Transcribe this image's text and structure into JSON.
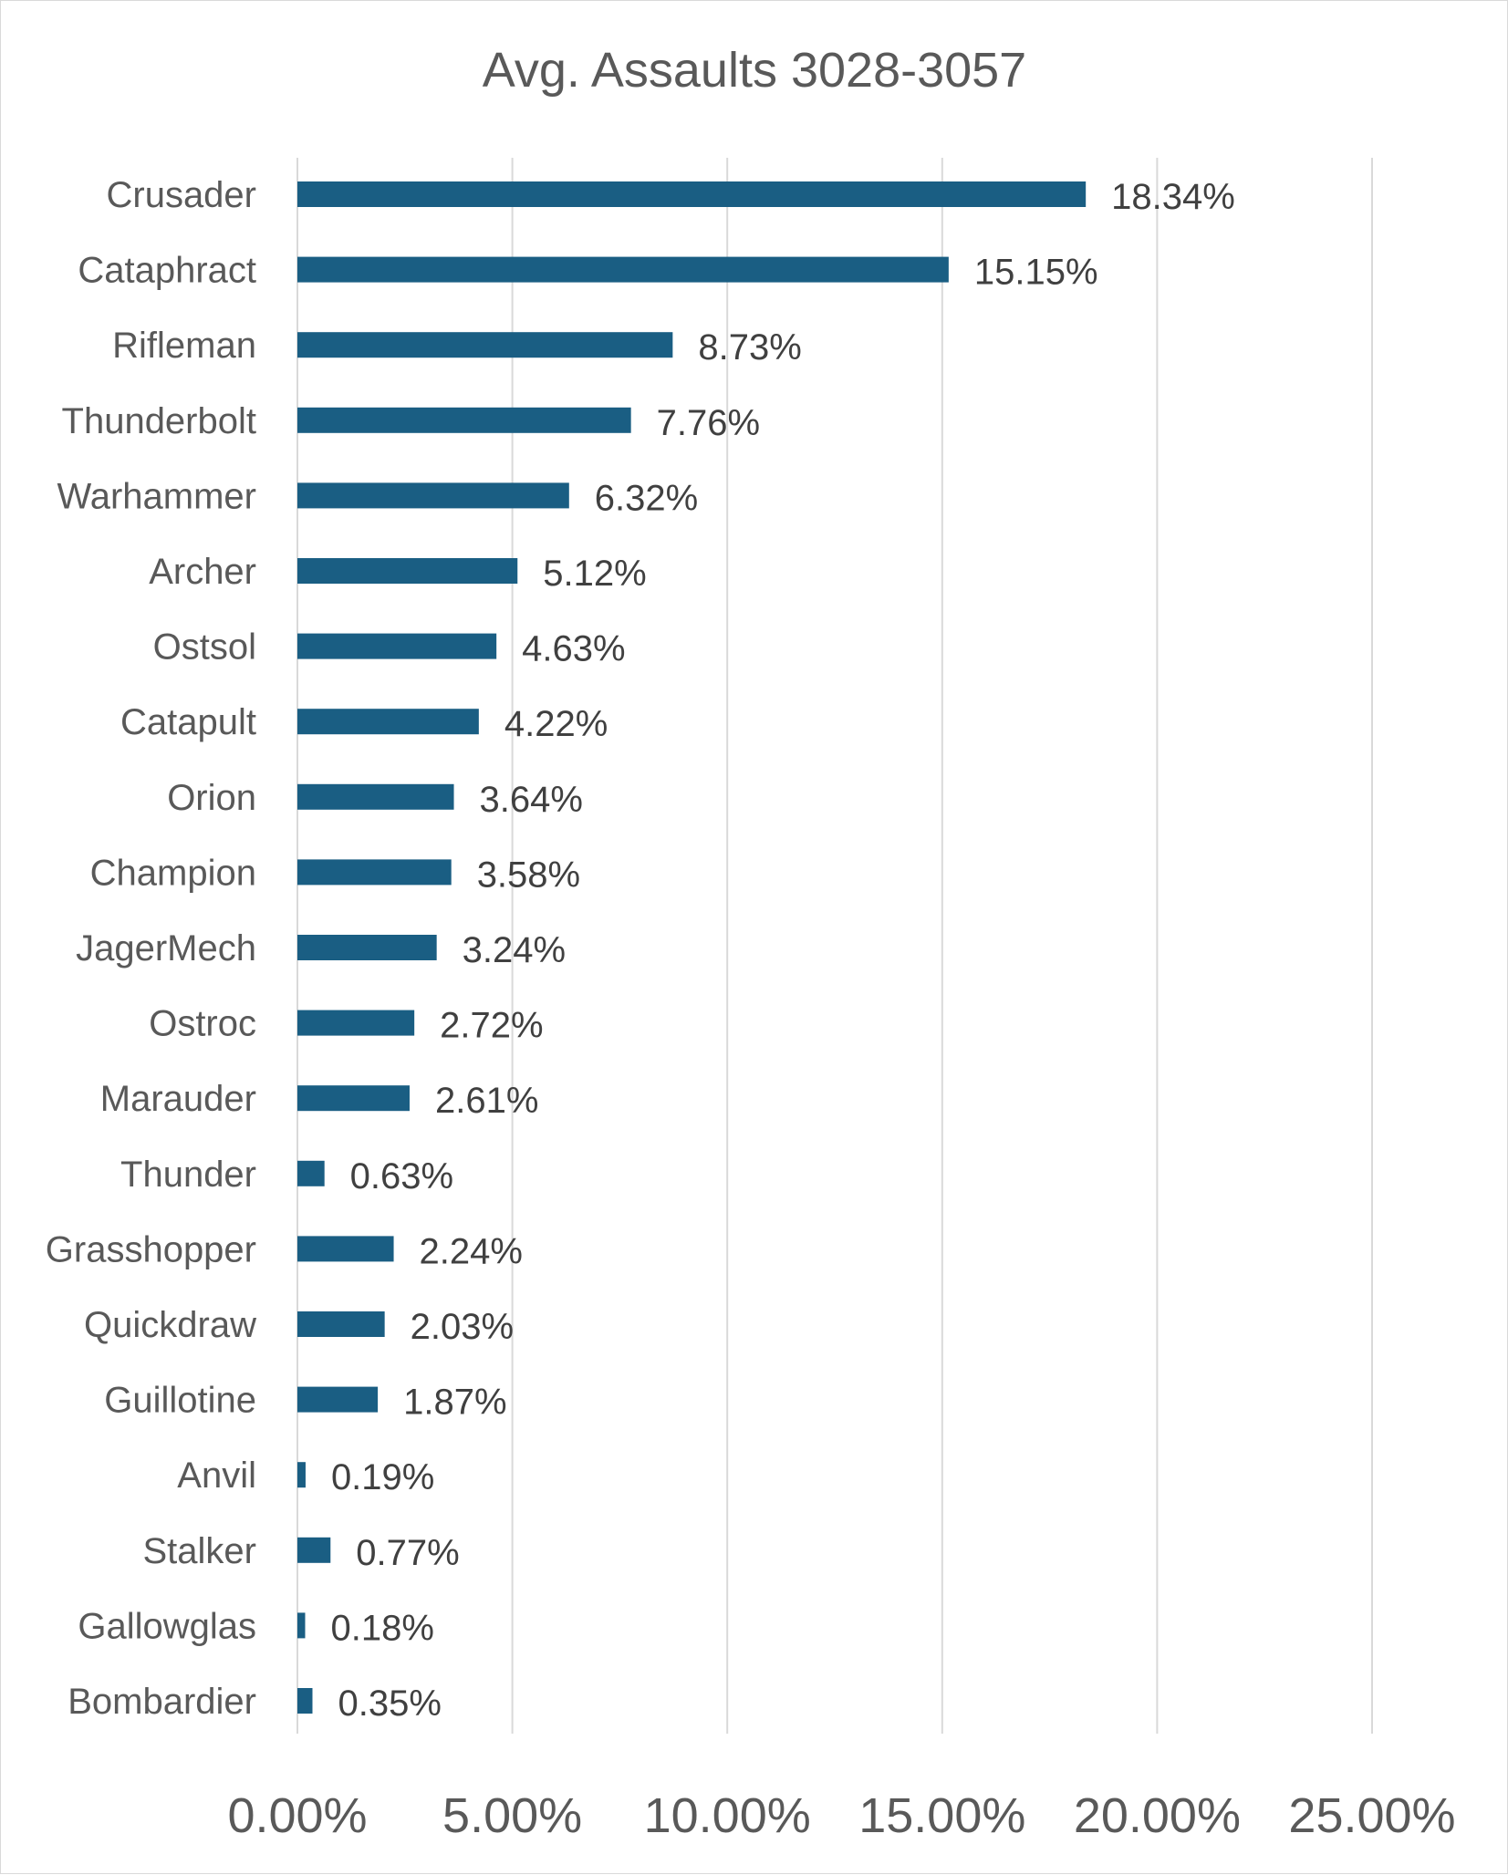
{
  "chart_data": {
    "type": "bar",
    "orientation": "horizontal",
    "title": "Avg. Assaults 3028-3057",
    "xlabel": "",
    "ylabel": "",
    "xlim": [
      0,
      25
    ],
    "x_ticks": [
      0,
      5,
      10,
      15,
      20,
      25
    ],
    "x_tick_labels": [
      "0.00%",
      "5.00%",
      "10.00%",
      "15.00%",
      "20.00%",
      "25.00%"
    ],
    "grid": "vertical",
    "legend": "none",
    "bar_color": "#1a5e83",
    "categories": [
      "Crusader",
      "Cataphract",
      "Rifleman",
      "Thunderbolt",
      "Warhammer",
      "Archer",
      "Ostsol",
      "Catapult",
      "Orion",
      "Champion",
      "JagerMech",
      "Ostroc",
      "Marauder",
      "Thunder",
      "Grasshopper",
      "Quickdraw",
      "Guillotine",
      "Anvil",
      "Stalker",
      "Gallowglas",
      "Bombardier"
    ],
    "values": [
      18.34,
      15.15,
      8.73,
      7.76,
      6.32,
      5.12,
      4.63,
      4.22,
      3.64,
      3.58,
      3.24,
      2.72,
      2.61,
      0.63,
      2.24,
      2.03,
      1.87,
      0.19,
      0.77,
      0.18,
      0.35
    ],
    "data_labels": [
      "18.34%",
      "15.15%",
      "8.73%",
      "7.76%",
      "6.32%",
      "5.12%",
      "4.63%",
      "4.22%",
      "3.64%",
      "3.58%",
      "3.24%",
      "2.72%",
      "2.61%",
      "0.63%",
      "2.24%",
      "2.03%",
      "1.87%",
      "0.19%",
      "0.77%",
      "0.18%",
      "0.35%"
    ]
  }
}
